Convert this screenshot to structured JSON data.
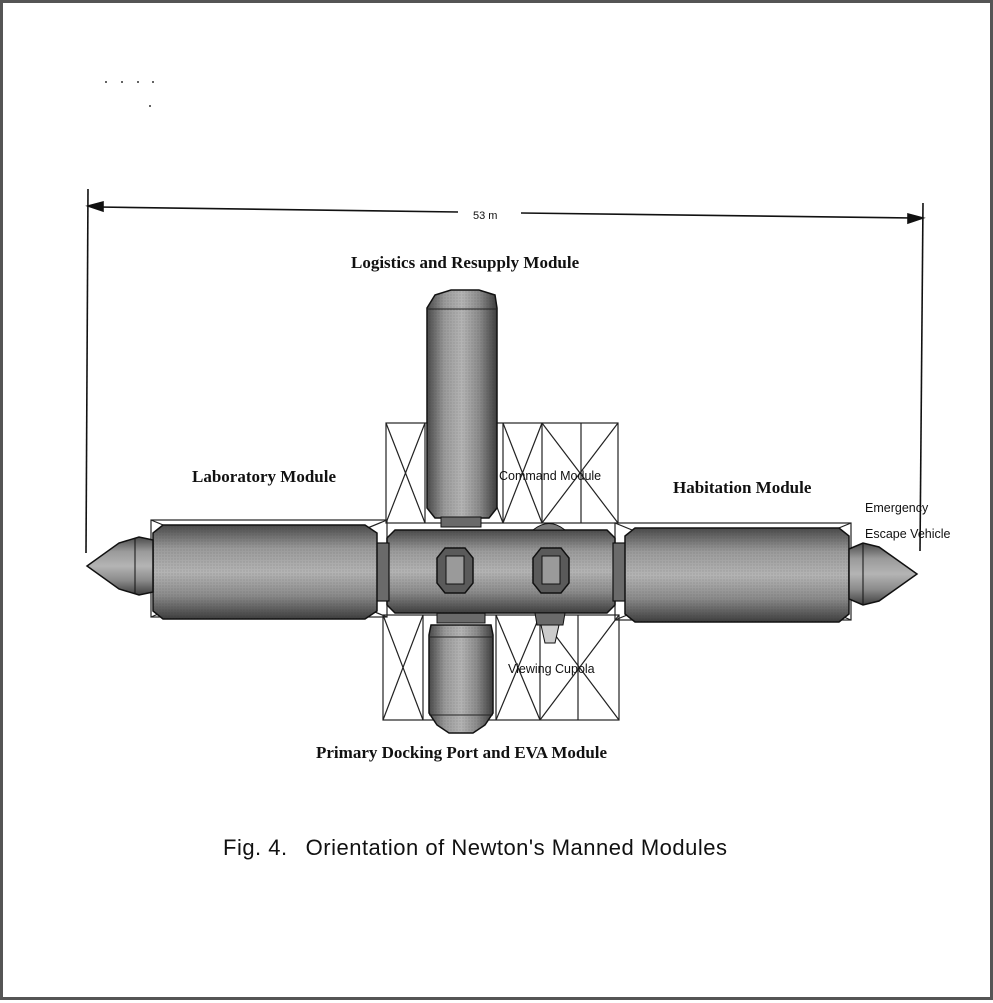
{
  "figure": {
    "dimension_label": "53 m",
    "labels": {
      "logistics": "Logistics and Resupply Module",
      "laboratory": "Laboratory Module",
      "command": "Command Module",
      "habitation": "Habitation Module",
      "emergency_line1": "Emergency",
      "emergency_line2": "Escape Vehicle",
      "viewing": "Viewing Cupola",
      "docking": "Primary Docking Port and EVA Module"
    },
    "caption_number": "Fig. 4.",
    "caption_text": "Orientation of Newton's Manned Modules"
  },
  "colors": {
    "ink": "#111111",
    "module_fill": "#8a8a8a",
    "module_dark": "#5e5e5e",
    "page_border": "#555555"
  }
}
